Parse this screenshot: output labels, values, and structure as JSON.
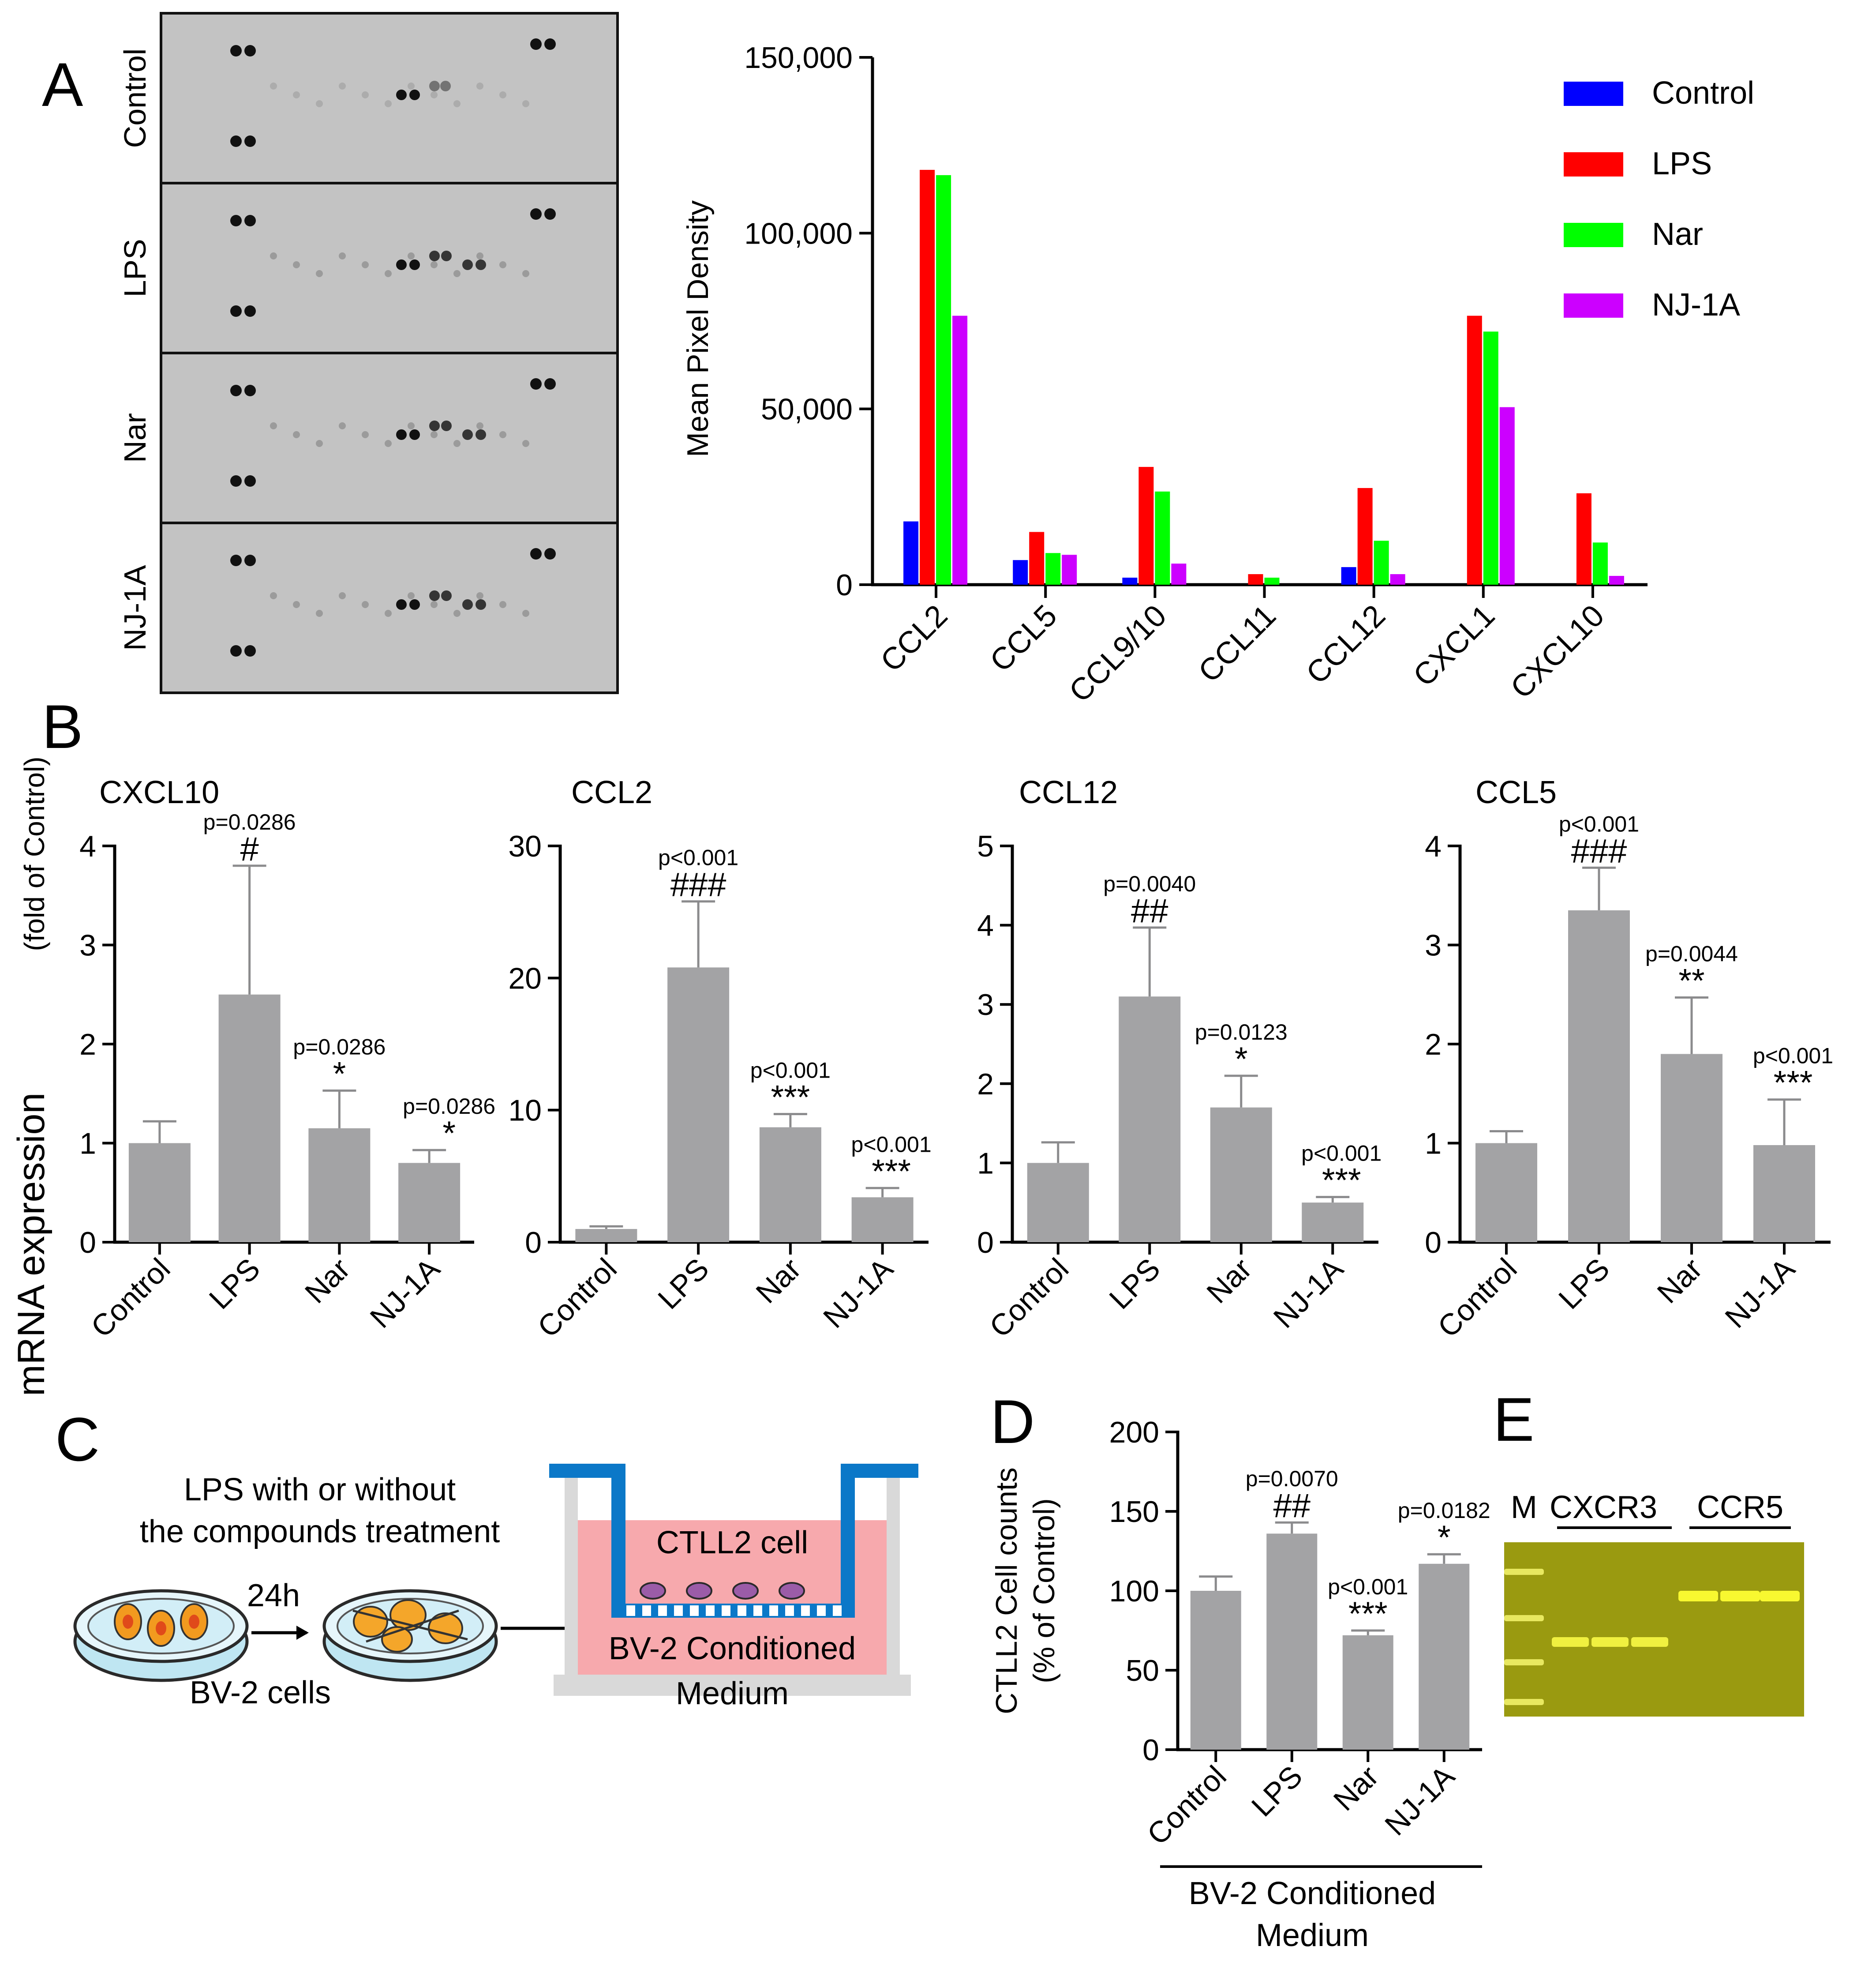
{
  "panel_labels": {
    "a": "A",
    "b": "B",
    "c": "C",
    "d": "D",
    "e": "E"
  },
  "colors": {
    "control": "#0000ff",
    "lps": "#ff0000",
    "nar": "#00ff00",
    "nj1a": "#cc00ff",
    "bar_grey": "#a3a3a5",
    "array_bg": "#c3c3c3",
    "gel_bg": "#9a9a10"
  },
  "array_rows": [
    "Control",
    "LPS",
    "Nar",
    "NJ-1A"
  ],
  "chart_data": [
    {
      "type": "bar",
      "title": "",
      "ylabel": "Mean Pixel Density",
      "yticks": [
        "0",
        "50,000",
        "100,000",
        "150,000"
      ],
      "ylim": [
        0,
        150000
      ],
      "categories": [
        "CCL2",
        "CCL5",
        "CCL9/10",
        "CCL11",
        "CCL12",
        "CXCL1",
        "CXCL10"
      ],
      "series": [
        {
          "name": "Control",
          "values": [
            18000,
            7000,
            2000,
            0,
            5000,
            0,
            0
          ]
        },
        {
          "name": "LPS",
          "values": [
            118000,
            15000,
            33500,
            3000,
            27500,
            76500,
            26000
          ]
        },
        {
          "name": "Nar",
          "values": [
            116500,
            9000,
            26500,
            2000,
            12500,
            72000,
            12000
          ]
        },
        {
          "name": "NJ-1A",
          "values": [
            76500,
            8500,
            6000,
            0,
            3000,
            50500,
            2500
          ]
        }
      ]
    },
    {
      "type": "bar",
      "title": "CXCL10",
      "categories": [
        "Control",
        "LPS",
        "Nar",
        "NJ-1A"
      ],
      "values": [
        1.0,
        2.5,
        1.15,
        0.8
      ],
      "errors": [
        0.22,
        1.3,
        0.38,
        0.13
      ],
      "ylim": [
        0,
        4
      ],
      "yticks": [
        "0",
        "1",
        "2",
        "3",
        "4"
      ],
      "pvalues": [
        "",
        "p=0.0286",
        "p=0.0286",
        "p=0.0286"
      ],
      "marks": [
        "",
        "#",
        "*",
        "*"
      ]
    },
    {
      "type": "bar",
      "title": "CCL2",
      "categories": [
        "Control",
        "LPS",
        "Nar",
        "NJ-1A"
      ],
      "values": [
        1.0,
        20.8,
        8.7,
        3.4
      ],
      "errors": [
        0.2,
        5.0,
        1.0,
        0.7
      ],
      "ylim": [
        0,
        30
      ],
      "yticks": [
        "0",
        "10",
        "20",
        "30"
      ],
      "pvalues": [
        "",
        "p<0.001",
        "p<0.001",
        "p<0.001"
      ],
      "marks": [
        "",
        "###",
        "***",
        "***"
      ]
    },
    {
      "type": "bar",
      "title": "CCL12",
      "categories": [
        "Control",
        "LPS",
        "Nar",
        "NJ-1A"
      ],
      "values": [
        1.0,
        3.1,
        1.7,
        0.5
      ],
      "errors": [
        0.26,
        0.87,
        0.4,
        0.07
      ],
      "ylim": [
        0,
        5
      ],
      "yticks": [
        "0",
        "1",
        "2",
        "3",
        "4",
        "5"
      ],
      "pvalues": [
        "",
        "p=0.0040",
        "p=0.0123",
        "p<0.001"
      ],
      "marks": [
        "",
        "##",
        "*",
        "***"
      ]
    },
    {
      "type": "bar",
      "title": "CCL5",
      "categories": [
        "Control",
        "LPS",
        "Nar",
        "NJ-1A"
      ],
      "values": [
        1.0,
        3.35,
        1.9,
        0.98
      ],
      "errors": [
        0.12,
        0.43,
        0.57,
        0.46
      ],
      "ylim": [
        0,
        4
      ],
      "yticks": [
        "0",
        "1",
        "2",
        "3",
        "4"
      ],
      "pvalues": [
        "",
        "p<0.001",
        "p=0.0044",
        "p<0.001"
      ],
      "marks": [
        "",
        "###",
        "**",
        "***"
      ]
    },
    {
      "type": "bar",
      "title": "",
      "ylabel_line1": "CTLL2 Cell counts",
      "ylabel_line2": "(% of Control)",
      "xlabel_line1": "BV-2 Conditioned",
      "xlabel_line2": "Medium",
      "categories": [
        "Control",
        "LPS",
        "Nar",
        "NJ-1A"
      ],
      "values": [
        100,
        136,
        72,
        117
      ],
      "errors": [
        9,
        7,
        3,
        6
      ],
      "ylim": [
        0,
        200
      ],
      "yticks": [
        "0",
        "50",
        "100",
        "150",
        "200"
      ],
      "pvalues": [
        "",
        "p=0.0070",
        "p<0.001",
        "p=0.0182"
      ],
      "marks": [
        "",
        "##",
        "***",
        "*"
      ]
    }
  ],
  "panel_b_ylabel_main": "mRNA expression",
  "panel_b_ylabel_sub": "(fold of Control)",
  "panel_c": {
    "treatment_line1": "LPS with or without",
    "treatment_line2": "the compounds treatment",
    "time": "24h",
    "cells": "BV-2 cells",
    "upper_cell": "CTLL2 cell",
    "medium_line1": "BV-2 Conditioned",
    "medium_line2": "Medium"
  },
  "panel_e": {
    "marker": "M",
    "lane1": "CXCR3",
    "lane2": "CCR5"
  }
}
